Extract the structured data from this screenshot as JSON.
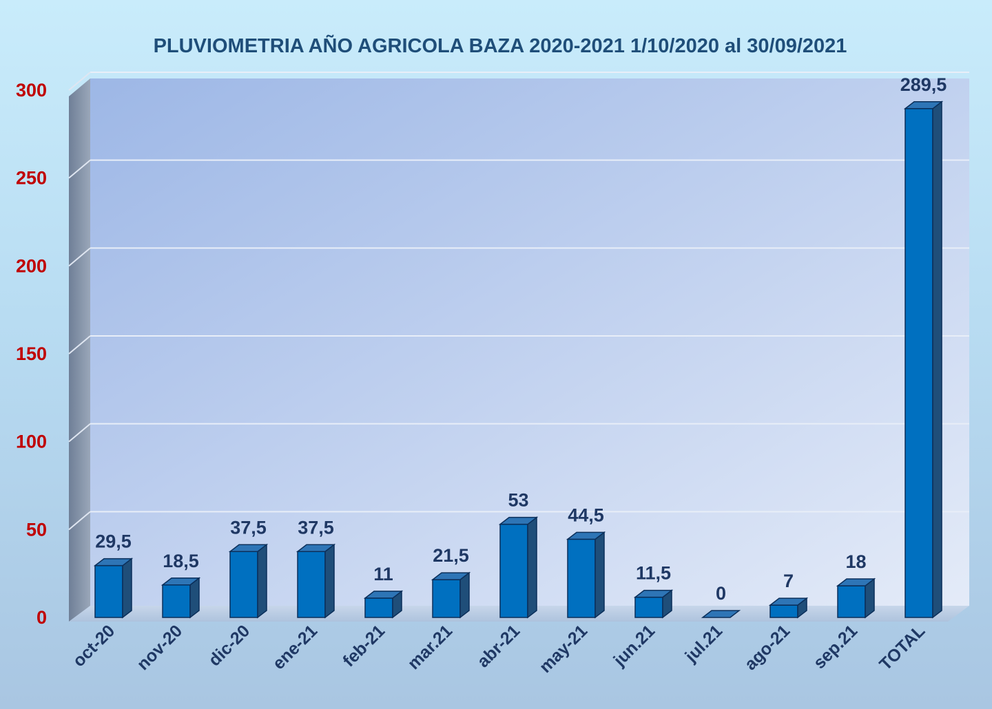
{
  "chart_data": {
    "type": "bar",
    "title": "PLUVIOMETRIA AÑO AGRICOLA BAZA 2020-2021 1/10/2020 al 30/09/2021",
    "categories": [
      "oct-20",
      "nov-20",
      "dic-20",
      "ene-21",
      "feb-21",
      "mar.21",
      "abr-21",
      "may-21",
      "jun.21",
      "jul.21",
      "ago-21",
      "sep.21",
      "TOTAL"
    ],
    "values": [
      29.5,
      18.5,
      37.5,
      37.5,
      11,
      21.5,
      53,
      44.5,
      11.5,
      0,
      7,
      18,
      289.5
    ],
    "data_labels": [
      "29,5",
      "18,5",
      "37,5",
      "37,5",
      "11",
      "21,5",
      "53",
      "44,5",
      "11,5",
      "0",
      "7",
      "18",
      "289,5"
    ],
    "y_ticks": [
      "0",
      "50",
      "100",
      "150",
      "200",
      "250",
      "300"
    ],
    "ylim": [
      0,
      300
    ],
    "xlabel": "",
    "ylabel": "",
    "grid": true,
    "style": "3d-column",
    "colors": {
      "bar_front": "#0070c0",
      "bar_side": "#1f4e79",
      "bar_top": "#2e75b6",
      "title": "#1f4e79",
      "y_tick": "#c00000",
      "x_tick": "#1f3864",
      "data_label": "#1f3864"
    }
  }
}
